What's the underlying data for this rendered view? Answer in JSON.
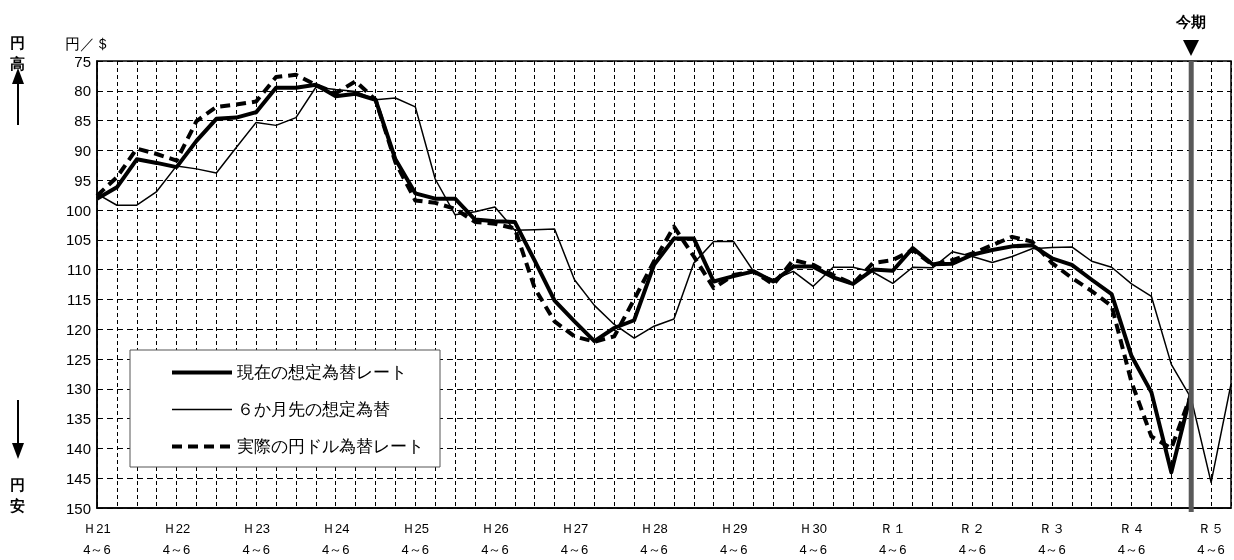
{
  "chart_data": {
    "type": "line",
    "ylabel": "円／＄",
    "x": [
      "2009-04",
      "2009-07",
      "2009-10",
      "2010-01",
      "2010-04",
      "2010-07",
      "2010-10",
      "2011-01",
      "2011-04",
      "2011-07",
      "2011-10",
      "2012-01",
      "2012-04",
      "2012-07",
      "2012-10",
      "2013-01",
      "2013-04",
      "2013-07",
      "2013-10",
      "2014-01",
      "2014-04",
      "2014-07",
      "2014-10",
      "2015-01",
      "2015-04",
      "2015-07",
      "2015-10",
      "2016-01",
      "2016-04",
      "2016-07",
      "2016-10",
      "2017-01",
      "2017-04",
      "2017-07",
      "2017-10",
      "2018-01",
      "2018-04",
      "2018-07",
      "2018-10",
      "2019-01",
      "2019-04",
      "2019-07",
      "2019-10",
      "2020-01",
      "2020-04",
      "2020-07",
      "2020-10",
      "2021-01",
      "2021-04",
      "2021-07",
      "2021-10",
      "2022-01",
      "2022-04",
      "2022-07",
      "2022-10",
      "2023-01",
      "2023-04",
      "2023-07"
    ],
    "xlim": [
      "2009-04",
      "2023-07"
    ],
    "xticks": [
      {
        "value": "2009-04",
        "label": "Ｈ21\n4～6"
      },
      {
        "value": "2010-04",
        "label": "Ｈ22\n4～6"
      },
      {
        "value": "2011-04",
        "label": "Ｈ23\n4～6"
      },
      {
        "value": "2012-04",
        "label": "Ｈ24\n4～6"
      },
      {
        "value": "2013-04",
        "label": "Ｈ25\n4～6"
      },
      {
        "value": "2014-04",
        "label": "Ｈ26\n4～6"
      },
      {
        "value": "2015-04",
        "label": "Ｈ27\n4～6"
      },
      {
        "value": "2016-04",
        "label": "Ｈ28\n4～6"
      },
      {
        "value": "2017-04",
        "label": "Ｈ29\n4～6"
      },
      {
        "value": "2018-04",
        "label": "Ｈ30\n4～6"
      },
      {
        "value": "2019-04",
        "label": "Ｒ１\n4～6"
      },
      {
        "value": "2020-04",
        "label": "Ｒ２\n4～6"
      },
      {
        "value": "2021-04",
        "label": "Ｒ３\n4～6"
      },
      {
        "value": "2022-04",
        "label": "Ｒ４\n4～6"
      },
      {
        "value": "2023-04",
        "label": "Ｒ５\n4～6"
      }
    ],
    "ylim": [
      150,
      75
    ],
    "yticks": [
      75,
      80,
      85,
      90,
      95,
      100,
      105,
      110,
      115,
      120,
      125,
      130,
      135,
      140,
      145,
      150
    ],
    "grid": true,
    "legend": "bottom left",
    "marker": "none",
    "series": [
      {
        "name": "現在の想定為替レート",
        "color": "#000000",
        "line_style": "solid",
        "values": [
          98.1,
          96.2,
          91.5,
          92.1,
          92.8,
          88.4,
          84.7,
          84.5,
          83.6,
          79.5,
          79.5,
          79.0,
          80.9,
          80.5,
          81.5,
          91.5,
          97.2,
          98.1,
          98.1,
          101.6,
          101.9,
          102.0,
          108.5,
          115.2,
          118.7,
          122.0,
          119.8,
          118.5,
          109.2,
          104.8,
          104.8,
          112.0,
          111.1,
          110.3,
          112.0,
          109.5,
          109.5,
          111.3,
          112.4,
          110.0,
          110.2,
          106.4,
          109.1,
          109.0,
          107.5,
          106.7,
          106.1,
          105.9,
          108.1,
          109.2,
          111.7,
          114.1,
          124.5,
          130.6,
          144.0,
          130.6,
          null,
          null
        ]
      },
      {
        "name": "６か月先の想定為替",
        "color": "#000000",
        "line_style": "solid",
        "values": [
          97.3,
          99.2,
          99.2,
          96.9,
          92.6,
          93.1,
          93.8,
          89.5,
          85.3,
          85.8,
          84.5,
          79.4,
          79.8,
          80.1,
          81.5,
          81.2,
          82.7,
          94.8,
          100.8,
          100.3,
          99.5,
          103.4,
          103.3,
          103.2,
          111.7,
          116.0,
          119.2,
          121.5,
          119.5,
          118.3,
          108.9,
          105.3,
          105.3,
          110.3,
          111.7,
          110.3,
          112.8,
          109.6,
          109.6,
          110.4,
          112.3,
          109.6,
          109.7,
          107.0,
          107.8,
          108.8,
          107.8,
          106.5,
          106.3,
          106.2,
          108.6,
          109.6,
          112.4,
          114.5,
          125.9,
          131.6,
          145.7,
          129.2
        ]
      },
      {
        "name": "実際の円ドル為替レート",
        "color": "#000000",
        "line_style": "dashed",
        "values": [
          97.6,
          94.5,
          89.7,
          90.6,
          91.7,
          85.1,
          82.7,
          82.3,
          81.8,
          77.7,
          77.3,
          79.0,
          80.4,
          78.4,
          81.5,
          92.0,
          98.4,
          98.8,
          99.8,
          102.0,
          102.3,
          103.1,
          113.1,
          118.7,
          121.2,
          122.1,
          121.2,
          115.0,
          108.6,
          102.8,
          107.8,
          113.1,
          110.9,
          110.3,
          112.5,
          108.4,
          109.2,
          110.9,
          112.4,
          108.9,
          108.4,
          106.7,
          109.2,
          108.4,
          107.3,
          105.9,
          104.5,
          105.3,
          108.9,
          111.4,
          113.6,
          116.1,
          128.9,
          138.0,
          140.0,
          130.9,
          null,
          null
        ]
      }
    ],
    "ref_lines": [
      {
        "axis": "x",
        "value": "2023-01",
        "label": "今期",
        "color": "#595959",
        "line_style": "solid"
      }
    ],
    "annotations": [
      "円高",
      "円安"
    ]
  }
}
